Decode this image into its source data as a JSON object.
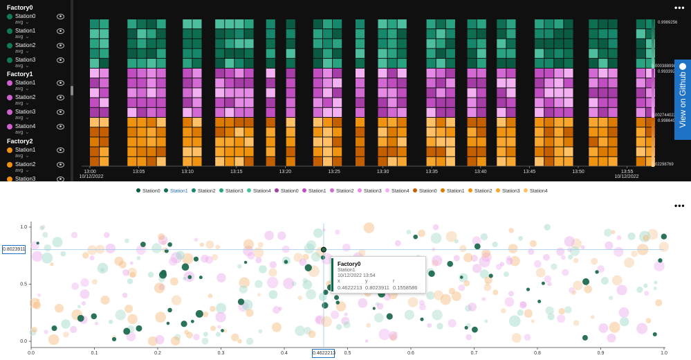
{
  "colors": {
    "factory0": [
      "#0b5a43",
      "#0d6e52",
      "#16876a",
      "#2aa382",
      "#4dbf9f"
    ],
    "factory1": [
      "#a63ca6",
      "#c04ec0",
      "#d36ad3",
      "#e58be5",
      "#f3b1f3"
    ],
    "factory2": [
      "#c45f00",
      "#dd7a00",
      "#f09410",
      "#f8a62e",
      "#ffc066"
    ]
  },
  "sidebar": {
    "factories": [
      {
        "name": "Factory0",
        "color": "#0e7a5a",
        "stations": [
          {
            "name": "Station0",
            "avg": "avg"
          },
          {
            "name": "Station1",
            "avg": "avg"
          },
          {
            "name": "Station2",
            "avg": "avg"
          },
          {
            "name": "Station3",
            "avg": "avg"
          }
        ]
      },
      {
        "name": "Factory1",
        "color": "#d060d0",
        "stations": [
          {
            "name": "Station1",
            "avg": "avg"
          },
          {
            "name": "Station2",
            "avg": "avg"
          },
          {
            "name": "Station3",
            "avg": "avg"
          },
          {
            "name": "Station4",
            "avg": "avg"
          }
        ]
      },
      {
        "name": "Factory2",
        "color": "#f39010",
        "stations": [
          {
            "name": "Station1",
            "avg": "avg"
          },
          {
            "name": "Station2",
            "avg": "avg"
          },
          {
            "name": "Station3",
            "avg": "avg"
          }
        ]
      }
    ]
  },
  "github_label": "View on Github",
  "more_label": "•••",
  "chart_data": [
    {
      "type": "heatmap",
      "title": "",
      "x_ticks": [
        "13:00",
        "13:05",
        "13:10",
        "13:15",
        "13:20",
        "13:25",
        "13:30",
        "13:35",
        "13:40",
        "13:45",
        "13:50",
        "13:55"
      ],
      "x_date_left": "10/12/2022",
      "x_date_right": "10/12/2022",
      "groups": [
        "Factory0",
        "Factory1",
        "Factory2"
      ],
      "rows_per_group": 5,
      "scale_labels": [
        {
          "group": "Factory0",
          "max": "0.9989256",
          "min": "0.0003889988"
        },
        {
          "group": "Factory1",
          "max": "0.9933925",
          "min": "0.002744022"
        },
        {
          "group": "Factory2",
          "max": "0.9986491",
          "min": "0.02298769"
        }
      ]
    },
    {
      "type": "scatter",
      "title": "",
      "xlabel": "",
      "ylabel": "",
      "xlim": [
        0,
        1
      ],
      "ylim": [
        0,
        1
      ],
      "x_ticks": [
        "0.0",
        "0.1",
        "0.2",
        "0.3",
        "0.4",
        "0.5",
        "0.6",
        "0.7",
        "0.8",
        "0.9",
        "1.0"
      ],
      "y_ticks": [
        "0.0",
        "0.5",
        "1.0"
      ],
      "legend": [
        {
          "name": "Station0",
          "factory": "Factory0"
        },
        {
          "name": "Station1",
          "factory": "Factory0",
          "selected": true
        },
        {
          "name": "Station2",
          "factory": "Factory0"
        },
        {
          "name": "Station3",
          "factory": "Factory0"
        },
        {
          "name": "Station4",
          "factory": "Factory0"
        },
        {
          "name": "Station0",
          "factory": "Factory1"
        },
        {
          "name": "Station1",
          "factory": "Factory1"
        },
        {
          "name": "Station2",
          "factory": "Factory1"
        },
        {
          "name": "Station3",
          "factory": "Factory1"
        },
        {
          "name": "Station4",
          "factory": "Factory1"
        },
        {
          "name": "Station0",
          "factory": "Factory2"
        },
        {
          "name": "Station1",
          "factory": "Factory2"
        },
        {
          "name": "Station2",
          "factory": "Factory2"
        },
        {
          "name": "Station3",
          "factory": "Factory2"
        },
        {
          "name": "Station4",
          "factory": "Factory2"
        }
      ],
      "highlight": {
        "x": 0.4622213,
        "y": 0.8023911,
        "r": 0.1558586
      },
      "crosshair": {
        "x_label": "0.4622213",
        "y_label": "0.8023911"
      },
      "tooltip": {
        "title": "Factory0",
        "subtitle": "Station1",
        "time": "10/12/2022 13:54",
        "x_label": "x",
        "y_label": "y",
        "r_label": "r",
        "x": "0.4622213",
        "y": "0.8023911",
        "r": "0.1558586"
      }
    }
  ]
}
